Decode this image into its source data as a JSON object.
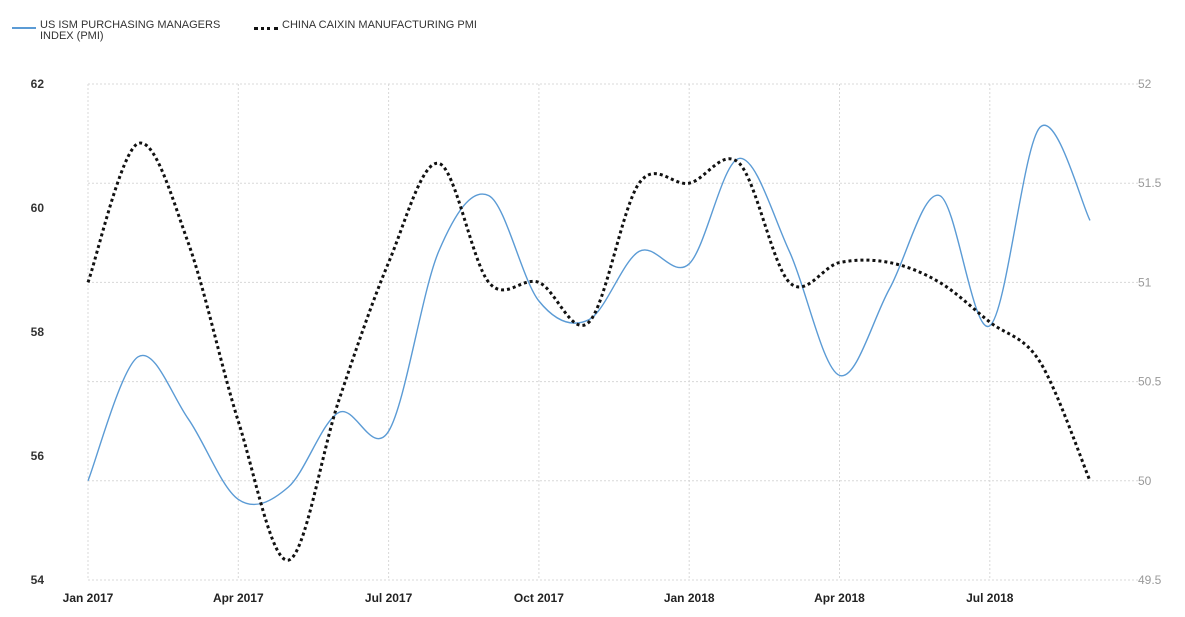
{
  "chart_data": {
    "type": "line",
    "x": [
      "2017-01",
      "2017-02",
      "2017-03",
      "2017-04",
      "2017-05",
      "2017-06",
      "2017-07",
      "2017-08",
      "2017-09",
      "2017-10",
      "2017-11",
      "2017-12",
      "2018-01",
      "2018-02",
      "2018-03",
      "2018-04",
      "2018-05",
      "2018-06",
      "2018-07",
      "2018-08",
      "2018-09"
    ],
    "x_tick_labels": [
      "Jan 2017",
      "Apr 2017",
      "Jul 2017",
      "Oct 2017",
      "Jan 2018",
      "Apr 2018",
      "Jul 2018"
    ],
    "series": [
      {
        "name": "US ISM PURCHASING MANAGERS INDEX (PMI)",
        "axis": "left",
        "color": "#5b9bd5",
        "style": "solid",
        "values": [
          55.6,
          57.6,
          56.6,
          55.3,
          55.5,
          56.7,
          56.4,
          59.3,
          60.2,
          58.5,
          58.2,
          59.3,
          59.1,
          60.8,
          59.3,
          57.3,
          58.7,
          60.2,
          58.1,
          61.3,
          59.8
        ]
      },
      {
        "name": "CHINA CAIXIN MANUFACTURING PMI",
        "axis": "right",
        "color": "#111111",
        "style": "dotted",
        "values": [
          51.0,
          51.7,
          51.2,
          50.3,
          49.6,
          50.4,
          51.1,
          51.6,
          51.0,
          51.0,
          50.8,
          51.5,
          51.5,
          51.6,
          51.0,
          51.1,
          51.1,
          51.0,
          50.8,
          50.6,
          50.0
        ]
      }
    ],
    "y_left": {
      "ylim": [
        54,
        62
      ],
      "ticks": [
        54,
        56,
        58,
        60,
        62
      ]
    },
    "y_right": {
      "ylim": [
        49.5,
        52
      ],
      "ticks": [
        49.5,
        50,
        50.5,
        51,
        51.5,
        52
      ]
    },
    "grid": true,
    "legend_position": "top-left"
  }
}
